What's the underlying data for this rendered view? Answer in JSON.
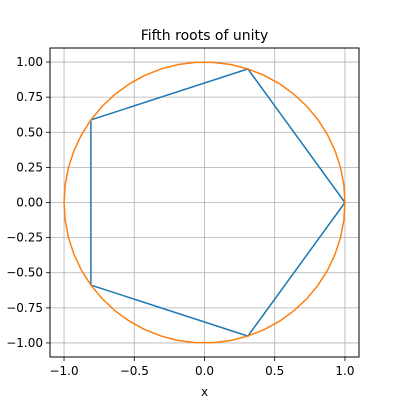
{
  "chart_data": {
    "type": "line",
    "title": "Fifth roots of unity",
    "xlabel": "x",
    "ylabel": "",
    "xlim": [
      -1.1,
      1.1
    ],
    "ylim": [
      -1.1,
      1.1
    ],
    "grid": true,
    "legend": "none",
    "x_ticks": [
      -1.0,
      -0.5,
      0.0,
      0.5,
      1.0
    ],
    "x_tick_labels": [
      "−1.0",
      "−0.5",
      "0.0",
      "0.5",
      "1.0"
    ],
    "y_ticks": [
      1.0,
      0.75,
      0.5,
      0.25,
      0.0,
      -0.25,
      -0.5,
      -0.75,
      -1.0
    ],
    "y_tick_labels": [
      "1.00",
      "0.75",
      "0.50",
      "0.25",
      "0.00",
      "−0.25",
      "−0.50",
      "−0.75",
      "−1.00"
    ],
    "series": [
      {
        "type": "line",
        "color": "#1f77b4",
        "x": [
          1.0,
          0.309,
          -0.809,
          -0.809,
          0.309,
          1.0
        ],
        "y": [
          0.0,
          0.951,
          0.588,
          -0.588,
          -0.951,
          0.0
        ]
      },
      {
        "type": "circle",
        "color": "#ff7f0e",
        "center": [
          0.0,
          0.0
        ],
        "radius": 1.0
      }
    ]
  }
}
